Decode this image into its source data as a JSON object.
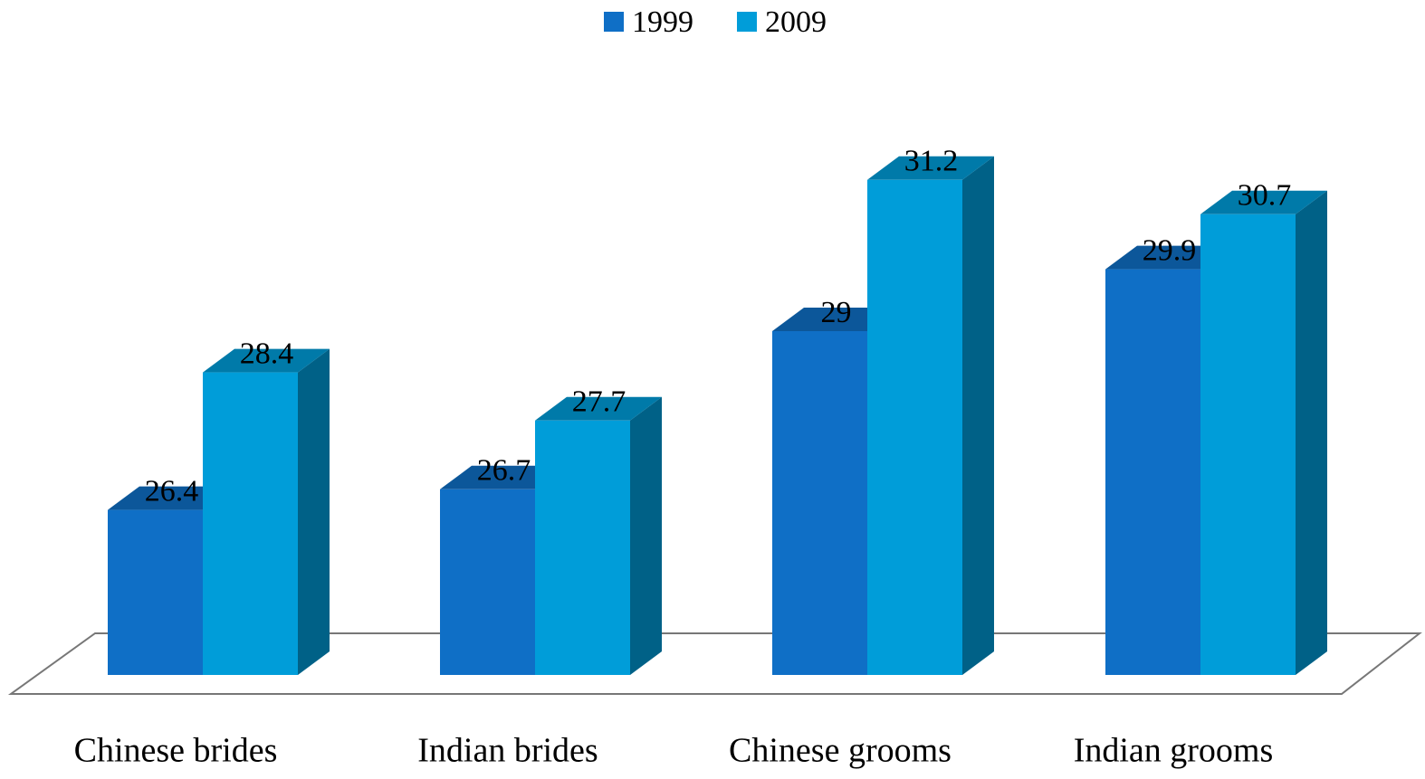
{
  "chart_data": {
    "type": "bar3d",
    "categories": [
      "Chinese brides",
      "Indian brides",
      "Chinese grooms",
      "Indian grooms"
    ],
    "series": [
      {
        "name": "1999",
        "color": "#0f6fc6",
        "values": [
          26.4,
          26.7,
          29,
          29.9
        ]
      },
      {
        "name": "2009",
        "color": "#009dd9",
        "values": [
          28.4,
          27.7,
          31.2,
          30.7
        ]
      }
    ],
    "ylim": [
      24,
      32
    ],
    "legend": "top"
  }
}
